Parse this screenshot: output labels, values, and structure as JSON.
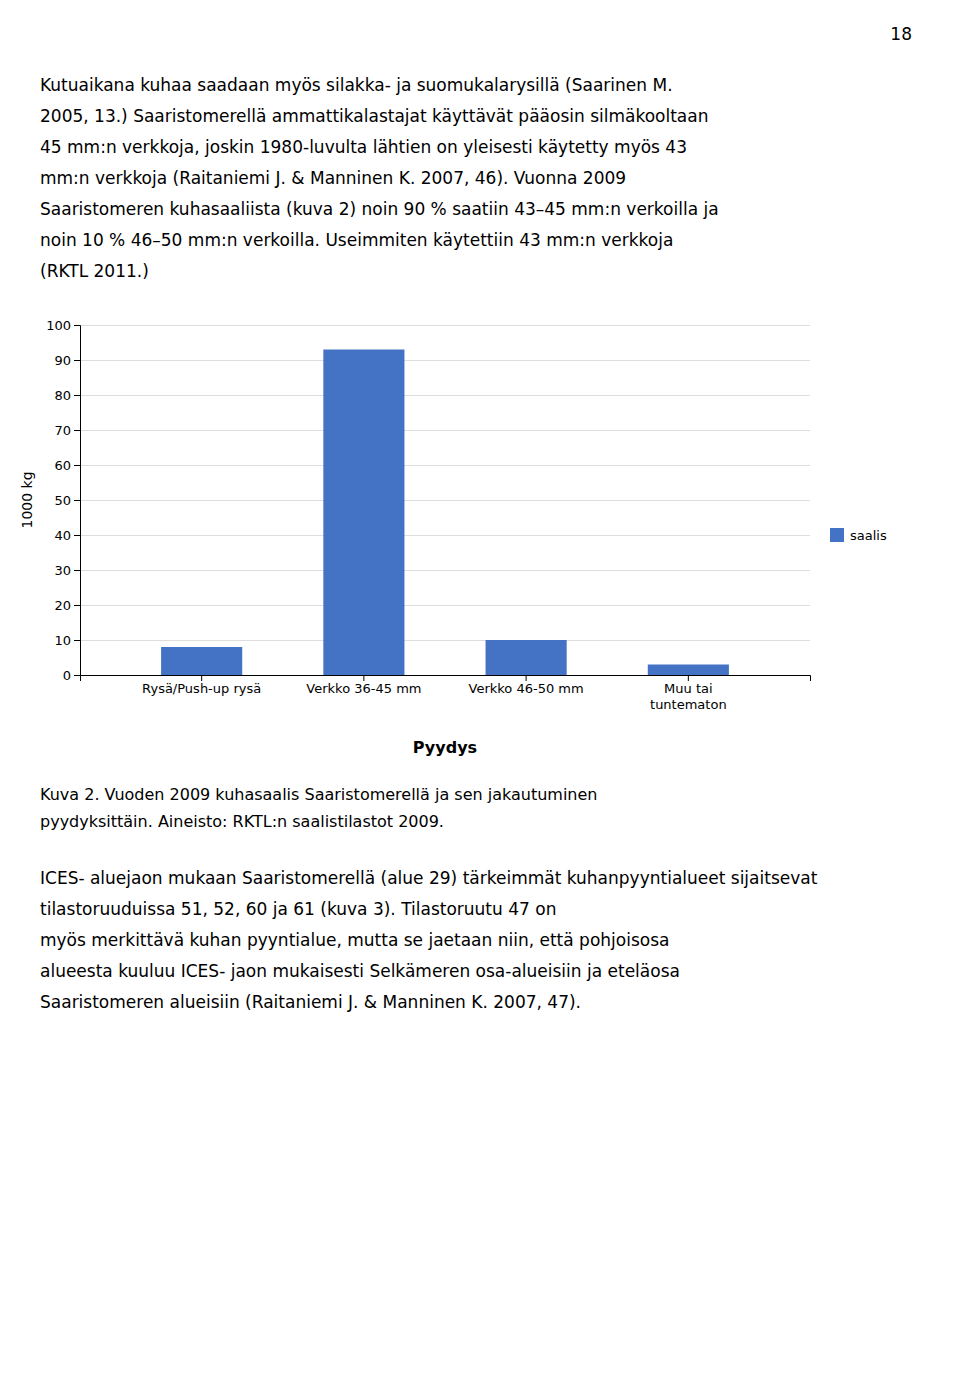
{
  "chart_data": {
    "type": "bar",
    "categories": [
      "Rysä/Push-up rysä",
      "Verkko 36-45 mm",
      "Verkko 46-50 mm",
      "Muu tai\ntuntematon"
    ],
    "series": [
      {
        "name": "saalis",
        "color": "#4472C4",
        "values": [
          8,
          93,
          10,
          3
        ]
      }
    ],
    "ylabel": "1000 kg",
    "xlabel": "Pyydys",
    "ylim": [
      0,
      100
    ],
    "yticks": [
      0,
      10,
      20,
      30,
      40,
      50,
      60,
      70,
      80,
      90,
      100
    ],
    "grid": true,
    "legend": "right"
  },
  "page": {
    "page_number": "18",
    "para1_lines": [
      "Kutuaikana kuhaa saadaan myös silakka- ja suomukalarysillä (Saarinen M.",
      "2005, 13.) Saaristomerellä ammattikalastajat käyttävät pääosin silmäkooltaan",
      "45 mm:n verkkoja, joskin 1980-luvulta lähtien on yleisesti käytetty myös 43",
      "mm:n verkkoja (Raitaniemi J. & Manninen K. 2007, 46). Vuonna 2009",
      "Saaristomeren kuhasaaliista (kuva 2) noin 90 % saatiin 43–45 mm:n verkoilla ja",
      "noin 10 % 46–50 mm:n verkoilla. Useimmiten käytettiin 43 mm:n verkkoja",
      "(RKTL 2011.)"
    ],
    "caption_lines": [
      "Kuva 2. Vuoden 2009 kuhasaalis Saaristomerellä ja sen jakautuminen",
      "pyydyksittäin. Aineisto: RKTL:n saalistilastot 2009."
    ],
    "para3_lines": [
      "ICES- aluejaon mukaan Saaristomerellä (alue 29) tärkeimmät kuhanpyyntialueet sijaitsevat tilastoruuduissa 51, 52, 60 ja 61 (kuva 3). Tilastoruutu 47 on",
      "myös merkittävä kuhan pyyntialue, mutta se jaetaan niin, että pohjoisosa",
      "alueesta kuuluu ICES- jaon mukaisesti Selkämeren osa-alueisiin ja eteläosa",
      "Saaristomeren alueisiin (Raitaniemi J. & Manninen K. 2007, 47)."
    ]
  }
}
